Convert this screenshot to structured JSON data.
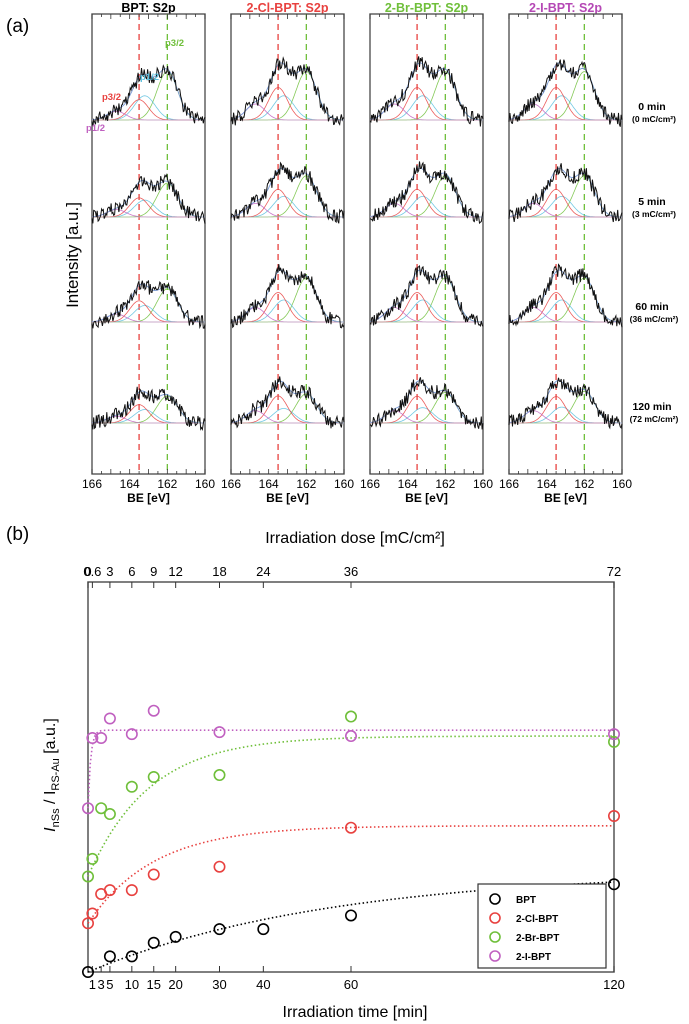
{
  "chart_data": [
    {
      "type": "line",
      "panel_label": "(a)",
      "ylabel": "Intensity [a.u.]",
      "xlabel": "BE [eV]",
      "xlim": [
        166,
        160
      ],
      "xticks": [
        "166",
        "164",
        "162",
        "160"
      ],
      "ref_lines_eV": [
        163.5,
        162.0
      ],
      "ref_line_colors": [
        "#e8413f",
        "#6fbf3a"
      ],
      "components": [
        {
          "name": "p3/2",
          "center_eV": 162.0,
          "color": "#6fbf3a"
        },
        {
          "name": "p1/2",
          "center_eV": 163.2,
          "color": "#5bc0de"
        },
        {
          "name": "p3/2",
          "center_eV": 163.5,
          "color": "#e8413f"
        },
        {
          "name": "p1/2",
          "center_eV": 164.7,
          "color": "#c060c0"
        }
      ],
      "panels": [
        {
          "title": "BPT: S2p",
          "color": "#000000"
        },
        {
          "title": "2-Cl-BPT: S2p",
          "color": "#e8413f"
        },
        {
          "title": "2-Br-BPT: S2p",
          "color": "#6fbf3a"
        },
        {
          "title": "2-I-BPT: S2p",
          "color": "#b548b5"
        }
      ],
      "times": [
        {
          "main": "0 min",
          "sub": "(0 mC/cm²)"
        },
        {
          "main": "5 min",
          "sub": "(3 mC/cm²)"
        },
        {
          "main": "60 min",
          "sub": "(36 mC/cm²)"
        },
        {
          "main": "120 min",
          "sub": "(72 mC/cm²)"
        }
      ]
    },
    {
      "type": "scatter",
      "panel_label": "(b)",
      "xlabel": "Irradiation time [min]",
      "ylabel_main": "I",
      "ylabel_sub1": "nSs",
      "ylabel_mid": " / I",
      "ylabel_sub2": "RS-Au",
      "ylabel_unit": " [a.u.]",
      "top_xlabel": "Irradiation dose [mC/cm²]",
      "xlim": [
        0,
        120
      ],
      "ylim": [
        0,
        1.0
      ],
      "bottom_ticks": [
        {
          "v": 1,
          "label": "1"
        },
        {
          "v": 3,
          "label": "3"
        },
        {
          "v": 5,
          "label": "5"
        },
        {
          "v": 10,
          "label": "10"
        },
        {
          "v": 15,
          "label": "15"
        },
        {
          "v": 20,
          "label": "20"
        },
        {
          "v": 30,
          "label": "30"
        },
        {
          "v": 40,
          "label": "40"
        },
        {
          "v": 60,
          "label": "60"
        },
        {
          "v": 120,
          "label": "120"
        }
      ],
      "top_ticks": [
        {
          "v": 0,
          "label": "0"
        },
        {
          "v": 1,
          "label": "0.6"
        },
        {
          "v": 5,
          "label": "3"
        },
        {
          "v": 10,
          "label": "6"
        },
        {
          "v": 15,
          "label": "9"
        },
        {
          "v": 20,
          "label": "12"
        },
        {
          "v": 30,
          "label": "18"
        },
        {
          "v": 40,
          "label": "24"
        },
        {
          "v": 60,
          "label": "36"
        },
        {
          "v": 120,
          "label": "72"
        }
      ],
      "legend_position": "bottom-right",
      "series": [
        {
          "name": "BPT",
          "color": "#000000",
          "x": [
            0,
            5,
            10,
            15,
            20,
            30,
            40,
            60,
            120
          ],
          "y": [
            0.0,
            0.04,
            0.04,
            0.075,
            0.09,
            0.11,
            0.11,
            0.145,
            0.225
          ],
          "fit": {
            "a": 0.26,
            "tau": 55
          }
        },
        {
          "name": "2-Cl-BPT",
          "color": "#e8413f",
          "x": [
            0,
            1,
            3,
            5,
            10,
            15,
            30,
            60,
            120
          ],
          "y": [
            0.125,
            0.15,
            0.2,
            0.21,
            0.21,
            0.25,
            0.27,
            0.37,
            0.4
          ],
          "fit": {
            "a": 0.25,
            "tau": 15,
            "y0": 0.125
          }
        },
        {
          "name": "2-Br-BPT",
          "color": "#6fbf3a",
          "x": [
            0,
            1,
            3,
            5,
            10,
            15,
            30,
            60,
            120
          ],
          "y": [
            0.245,
            0.29,
            0.42,
            0.405,
            0.475,
            0.5,
            0.505,
            0.655,
            0.59
          ],
          "fit": {
            "a": 0.36,
            "tau": 14,
            "y0": 0.245
          }
        },
        {
          "name": "2-I-BPT",
          "color": "#c060c0",
          "x": [
            0,
            1,
            3,
            5,
            10,
            15,
            30,
            60,
            120
          ],
          "y": [
            0.42,
            0.6,
            0.6,
            0.65,
            0.61,
            0.67,
            0.615,
            0.605,
            0.61
          ],
          "fit": {
            "a": 0.2,
            "tau": 0.6,
            "y0": 0.42
          }
        }
      ]
    }
  ]
}
